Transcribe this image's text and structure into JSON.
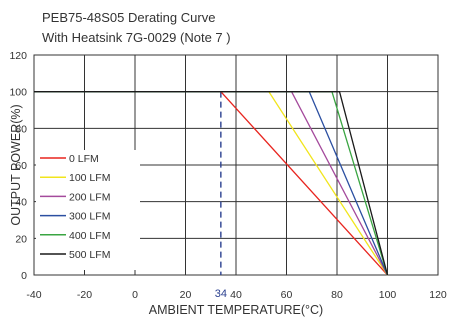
{
  "chart_data": {
    "type": "line",
    "title": "PEB75-48S05 Derating Curve",
    "subtitle": "With Heatsink 7G-0029 (Note 7 )",
    "xlabel": "AMBIENT TEMPERATURE(°C)",
    "ylabel": "OUTPUT POWER(%)",
    "xlim": [
      -40,
      120
    ],
    "ylim": [
      0,
      120
    ],
    "xticks": [
      -40,
      -20,
      0,
      20,
      40,
      60,
      80,
      100,
      120
    ],
    "yticks": [
      0,
      20,
      40,
      60,
      80,
      100,
      120
    ],
    "grid": true,
    "legend_position": "left",
    "marker": {
      "x": 34,
      "label": "34"
    },
    "series": [
      {
        "name": "0 LFM",
        "color": "#e8251f",
        "x": [
          -40,
          34,
          100
        ],
        "y": [
          100,
          100,
          0
        ]
      },
      {
        "name": "100 LFM",
        "color": "#f1e51c",
        "x": [
          -40,
          53,
          100
        ],
        "y": [
          100,
          100,
          0
        ]
      },
      {
        "name": "200 LFM",
        "color": "#a44a9c",
        "x": [
          -40,
          62,
          100
        ],
        "y": [
          100,
          100,
          0
        ]
      },
      {
        "name": "300 LFM",
        "color": "#2b4fa1",
        "x": [
          -40,
          69,
          100
        ],
        "y": [
          100,
          100,
          0
        ]
      },
      {
        "name": "400 LFM",
        "color": "#3aa542",
        "x": [
          -40,
          78,
          100
        ],
        "y": [
          100,
          100,
          0
        ]
      },
      {
        "name": "500 LFM",
        "color": "#1a1a1a",
        "x": [
          -40,
          81,
          100
        ],
        "y": [
          100,
          100,
          0
        ]
      }
    ]
  }
}
